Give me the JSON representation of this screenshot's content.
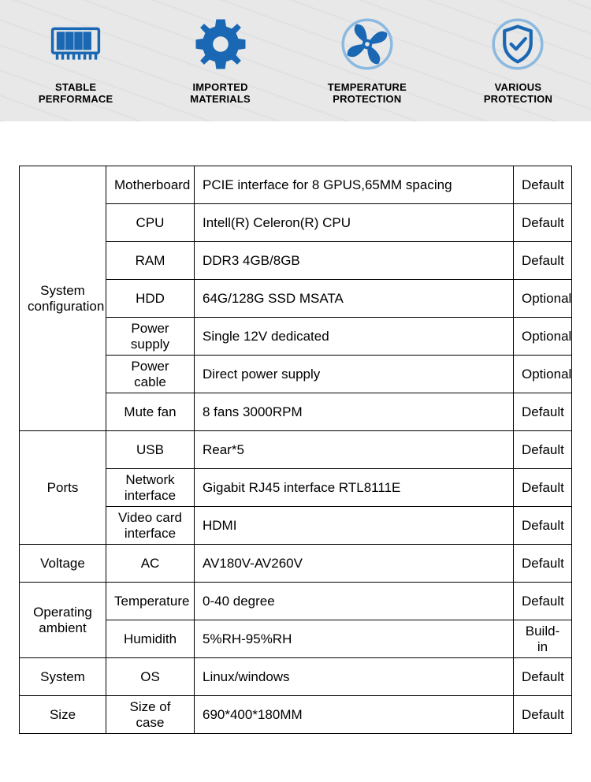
{
  "colors": {
    "icon_primary": "#1a68b3",
    "icon_light": "#8bb9e0",
    "strip_bg": "#e8e8e8",
    "text": "#000000",
    "border": "#000000"
  },
  "features": [
    {
      "icon": "ram-icon",
      "label": "STABLE\nPERFORMACE"
    },
    {
      "icon": "gear-icon",
      "label": "IMPORTED\nMATERIALS"
    },
    {
      "icon": "fan-icon",
      "label": "TEMPERATURE\nPROTECTION"
    },
    {
      "icon": "shield-icon",
      "label": "VARIOUS\nPROTECTION"
    }
  ],
  "spec_table": {
    "columns": [
      "category",
      "parameter",
      "value",
      "status"
    ],
    "groups": [
      {
        "category": "System\nconfiguration",
        "rows": [
          {
            "param": "Motherboard",
            "value": "PCIE interface for 8 GPUS,65MM spacing",
            "status": "Default"
          },
          {
            "param": "CPU",
            "value": "Intell(R) Celeron(R) CPU",
            "status": "Default"
          },
          {
            "param": "RAM",
            "value": "DDR3 4GB/8GB",
            "status": "Default"
          },
          {
            "param": "HDD",
            "value": "64G/128G SSD MSATA",
            "status": "Optional"
          },
          {
            "param": "Power supply",
            "value": "Single 12V dedicated",
            "status": "Optional"
          },
          {
            "param": "Power cable",
            "value": "Direct power supply",
            "status": "Optional"
          },
          {
            "param": "Mute fan",
            "value": "8 fans   3000RPM",
            "status": "Default"
          }
        ]
      },
      {
        "category": "Ports",
        "rows": [
          {
            "param": "USB",
            "value": "Rear*5",
            "status": "Default"
          },
          {
            "param": "Network\ninterface",
            "value": "Gigabit RJ45 interface RTL8111E",
            "status": "Default"
          },
          {
            "param": "Video card\ninterface",
            "value": "HDMI",
            "status": "Default"
          }
        ]
      },
      {
        "category": "Voltage",
        "rows": [
          {
            "param": "AC",
            "value": "AV180V-AV260V",
            "status": "Default"
          }
        ]
      },
      {
        "category": "Operating\nambient",
        "rows": [
          {
            "param": "Temperature",
            "value": "0-40 degree",
            "status": "Default"
          },
          {
            "param": "Humidith",
            "value": "5%RH-95%RH",
            "status": "Build-in"
          }
        ]
      },
      {
        "category": "System",
        "rows": [
          {
            "param": "OS",
            "value": "Linux/windows",
            "status": "Default"
          }
        ]
      },
      {
        "category": "Size",
        "rows": [
          {
            "param": "Size of case",
            "value": "690*400*180MM",
            "status": "Default"
          }
        ]
      }
    ]
  }
}
